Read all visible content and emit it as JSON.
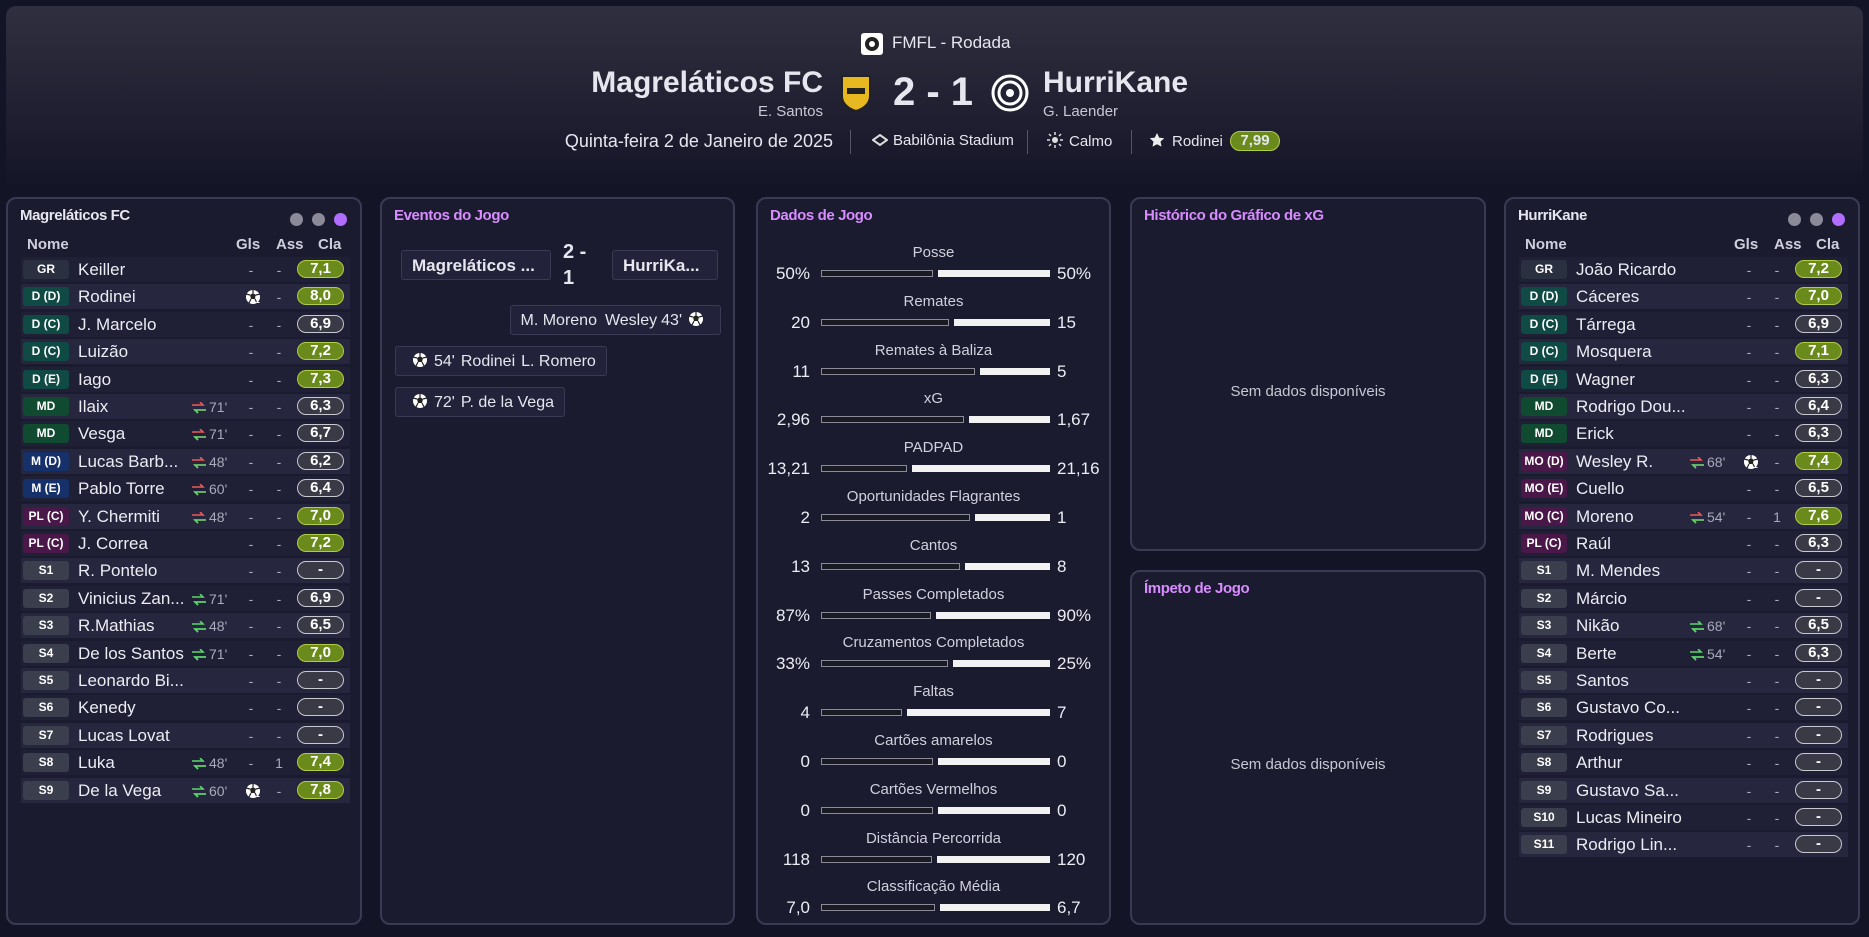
{
  "header": {
    "competition": "FMFL - Rodada",
    "home": {
      "name": "Magreláticos FC",
      "manager": "E. Santos"
    },
    "score": "2 - 1",
    "away": {
      "name": "HurriKane",
      "manager": "G. Laender"
    },
    "date": "Quinta-feira 2 de Janeiro de 2025",
    "stadium": "Babilônia Stadium",
    "weather": "Calmo",
    "player_of_match": {
      "name": "Rodinei",
      "rating": "7,99"
    }
  },
  "home_panel": {
    "title": "Magreláticos FC",
    "columns": [
      "Nome",
      "Gls",
      "Ass",
      "Cla"
    ],
    "players": [
      {
        "pos": "GR",
        "name": "Keiller",
        "gls": "-",
        "ass": "-",
        "rating": "7,1"
      },
      {
        "pos": "D (D)",
        "name": "Rodinei",
        "gls": "1",
        "ass": "-",
        "rating": "8,0"
      },
      {
        "pos": "D (C)",
        "name": "J. Marcelo",
        "gls": "-",
        "ass": "-",
        "rating": "6,9"
      },
      {
        "pos": "D (C)",
        "name": "Luizão",
        "gls": "-",
        "ass": "-",
        "rating": "7,2"
      },
      {
        "pos": "D (E)",
        "name": "Iago",
        "gls": "-",
        "ass": "-",
        "rating": "7,3"
      },
      {
        "pos": "MD",
        "name": "Ilaix",
        "sub": "71'",
        "sub_dir": "out",
        "gls": "-",
        "ass": "-",
        "rating": "6,3"
      },
      {
        "pos": "MD",
        "name": "Vesga",
        "sub": "71'",
        "sub_dir": "out",
        "gls": "-",
        "ass": "-",
        "rating": "6,7"
      },
      {
        "pos": "M (D)",
        "name": "Lucas Barb...",
        "sub": "48'",
        "sub_dir": "out",
        "gls": "-",
        "ass": "-",
        "rating": "6,2"
      },
      {
        "pos": "M (E)",
        "name": "Pablo Torre",
        "sub": "60'",
        "sub_dir": "out",
        "gls": "-",
        "ass": "-",
        "rating": "6,4"
      },
      {
        "pos": "PL (C)",
        "name": "Y. Chermiti",
        "sub": "48'",
        "sub_dir": "out",
        "gls": "-",
        "ass": "-",
        "rating": "7,0"
      },
      {
        "pos": "PL (C)",
        "name": "J. Correa",
        "gls": "-",
        "ass": "-",
        "rating": "7,2"
      },
      {
        "pos": "S1",
        "name": "R. Pontelo",
        "gls": "-",
        "ass": "-",
        "rating": "-"
      },
      {
        "pos": "S2",
        "name": "Vinicius Zan...",
        "sub": "71'",
        "sub_dir": "in",
        "gls": "-",
        "ass": "-",
        "rating": "6,9"
      },
      {
        "pos": "S3",
        "name": "R.Mathias",
        "sub": "48'",
        "sub_dir": "in",
        "gls": "-",
        "ass": "-",
        "rating": "6,5"
      },
      {
        "pos": "S4",
        "name": "De los Santos",
        "sub": "71'",
        "sub_dir": "in",
        "gls": "-",
        "ass": "-",
        "rating": "7,0"
      },
      {
        "pos": "S5",
        "name": "Leonardo Bi...",
        "gls": "-",
        "ass": "-",
        "rating": "-"
      },
      {
        "pos": "S6",
        "name": "Kenedy",
        "gls": "-",
        "ass": "-",
        "rating": "-"
      },
      {
        "pos": "S7",
        "name": "Lucas Lovat",
        "gls": "-",
        "ass": "-",
        "rating": "-"
      },
      {
        "pos": "S8",
        "name": "Luka",
        "sub": "48'",
        "sub_dir": "in",
        "gls": "-",
        "ass": "1",
        "rating": "7,4"
      },
      {
        "pos": "S9",
        "name": "De la Vega",
        "sub": "60'",
        "sub_dir": "in",
        "gls": "1",
        "ass": "-",
        "rating": "7,8"
      }
    ]
  },
  "events": {
    "title": "Eventos do Jogo",
    "home": "Magreláticos ...",
    "score": "2 - 1",
    "away": "HurriKa...",
    "items": [
      {
        "side": "away",
        "assist": "M. Moreno",
        "player": "Wesley",
        "minute": "43'"
      },
      {
        "side": "home",
        "minute": "54'",
        "player": "Rodinei",
        "assist": "L. Romero"
      },
      {
        "side": "home",
        "minute": "72'",
        "player": "P. de la Vega"
      }
    ]
  },
  "stats": {
    "title": "Dados de Jogo",
    "items": [
      {
        "label": "Posse",
        "home": 50,
        "away": 50,
        "home_label": "50%",
        "away_label": "50%"
      },
      {
        "label": "Remates",
        "home": 20,
        "away": 15
      },
      {
        "label": "Remates à Baliza",
        "home": 11,
        "away": 5
      },
      {
        "label": "xG",
        "home": 2.96,
        "away": 1.67,
        "home_label": "2,96",
        "away_label": "1,67"
      },
      {
        "label": "PADPAD",
        "home": 13.21,
        "away": 21.16,
        "home_label": "13,21",
        "away_label": "21,16"
      },
      {
        "label": "Oportunidades Flagrantes",
        "home": 2,
        "away": 1
      },
      {
        "label": "Cantos",
        "home": 13,
        "away": 8
      },
      {
        "label": "Passes Completados",
        "home": 87,
        "away": 90,
        "home_label": "87%",
        "away_label": "90%"
      },
      {
        "label": "Cruzamentos Completados",
        "home": 33,
        "away": 25,
        "home_label": "33%",
        "away_label": "25%"
      },
      {
        "label": "Faltas",
        "home": 4,
        "away": 7
      },
      {
        "label": "Cartões amarelos",
        "home": 0,
        "away": 0
      },
      {
        "label": "Cartões Vermelhos",
        "home": 0,
        "away": 0
      },
      {
        "label": "Distância Percorrida",
        "home": 118,
        "away": 120
      },
      {
        "label": "Classificação Média",
        "home": 7.0,
        "away": 6.7,
        "home_label": "7,0",
        "away_label": "6,7"
      }
    ]
  },
  "xg": {
    "title": "Histórico do Gráfico de xG",
    "empty": "Sem dados disponíveis"
  },
  "momentum": {
    "title": "Ímpeto de Jogo",
    "empty": "Sem dados disponíveis"
  },
  "away_panel": {
    "title": "HurriKane",
    "columns": [
      "Nome",
      "Gls",
      "Ass",
      "Cla"
    ],
    "players": [
      {
        "pos": "GR",
        "name": "João Ricardo",
        "gls": "-",
        "ass": "-",
        "rating": "7,2"
      },
      {
        "pos": "D (D)",
        "name": "Cáceres",
        "gls": "-",
        "ass": "-",
        "rating": "7,0"
      },
      {
        "pos": "D (C)",
        "name": "Tárrega",
        "gls": "-",
        "ass": "-",
        "rating": "6,9"
      },
      {
        "pos": "D (C)",
        "name": "Mosquera",
        "gls": "-",
        "ass": "-",
        "rating": "7,1"
      },
      {
        "pos": "D (E)",
        "name": "Wagner",
        "gls": "-",
        "ass": "-",
        "rating": "6,3"
      },
      {
        "pos": "MD",
        "name": "Rodrigo Dou...",
        "gls": "-",
        "ass": "-",
        "rating": "6,4"
      },
      {
        "pos": "MD",
        "name": "Erick",
        "gls": "-",
        "ass": "-",
        "rating": "6,3"
      },
      {
        "pos": "MO (D)",
        "name": "Wesley R.",
        "sub": "68'",
        "sub_dir": "out",
        "gls": "1",
        "ass": "-",
        "rating": "7,4"
      },
      {
        "pos": "MO (E)",
        "name": "Cuello",
        "gls": "-",
        "ass": "-",
        "rating": "6,5"
      },
      {
        "pos": "MO (C)",
        "name": "Moreno",
        "sub": "54'",
        "sub_dir": "out",
        "gls": "-",
        "ass": "1",
        "rating": "7,6"
      },
      {
        "pos": "PL (C)",
        "name": "Raúl",
        "gls": "-",
        "ass": "-",
        "rating": "6,3"
      },
      {
        "pos": "S1",
        "name": "M. Mendes",
        "gls": "-",
        "ass": "-",
        "rating": "-"
      },
      {
        "pos": "S2",
        "name": "Márcio",
        "gls": "-",
        "ass": "-",
        "rating": "-"
      },
      {
        "pos": "S3",
        "name": "Nikão",
        "sub": "68'",
        "sub_dir": "in",
        "gls": "-",
        "ass": "-",
        "rating": "6,5"
      },
      {
        "pos": "S4",
        "name": "Berte",
        "sub": "54'",
        "sub_dir": "in",
        "gls": "-",
        "ass": "-",
        "rating": "6,3"
      },
      {
        "pos": "S5",
        "name": "Santos",
        "gls": "-",
        "ass": "-",
        "rating": "-"
      },
      {
        "pos": "S6",
        "name": "Gustavo Co...",
        "gls": "-",
        "ass": "-",
        "rating": "-"
      },
      {
        "pos": "S7",
        "name": "Rodrigues",
        "gls": "-",
        "ass": "-",
        "rating": "-"
      },
      {
        "pos": "S8",
        "name": "Arthur",
        "gls": "-",
        "ass": "-",
        "rating": "-"
      },
      {
        "pos": "S9",
        "name": "Gustavo Sa...",
        "gls": "-",
        "ass": "-",
        "rating": "-"
      },
      {
        "pos": "S10",
        "name": "Lucas Mineiro",
        "gls": "-",
        "ass": "-",
        "rating": "-"
      },
      {
        "pos": "S11",
        "name": "Rodrigo Lin...",
        "gls": "-",
        "ass": "-",
        "rating": "-"
      }
    ]
  }
}
